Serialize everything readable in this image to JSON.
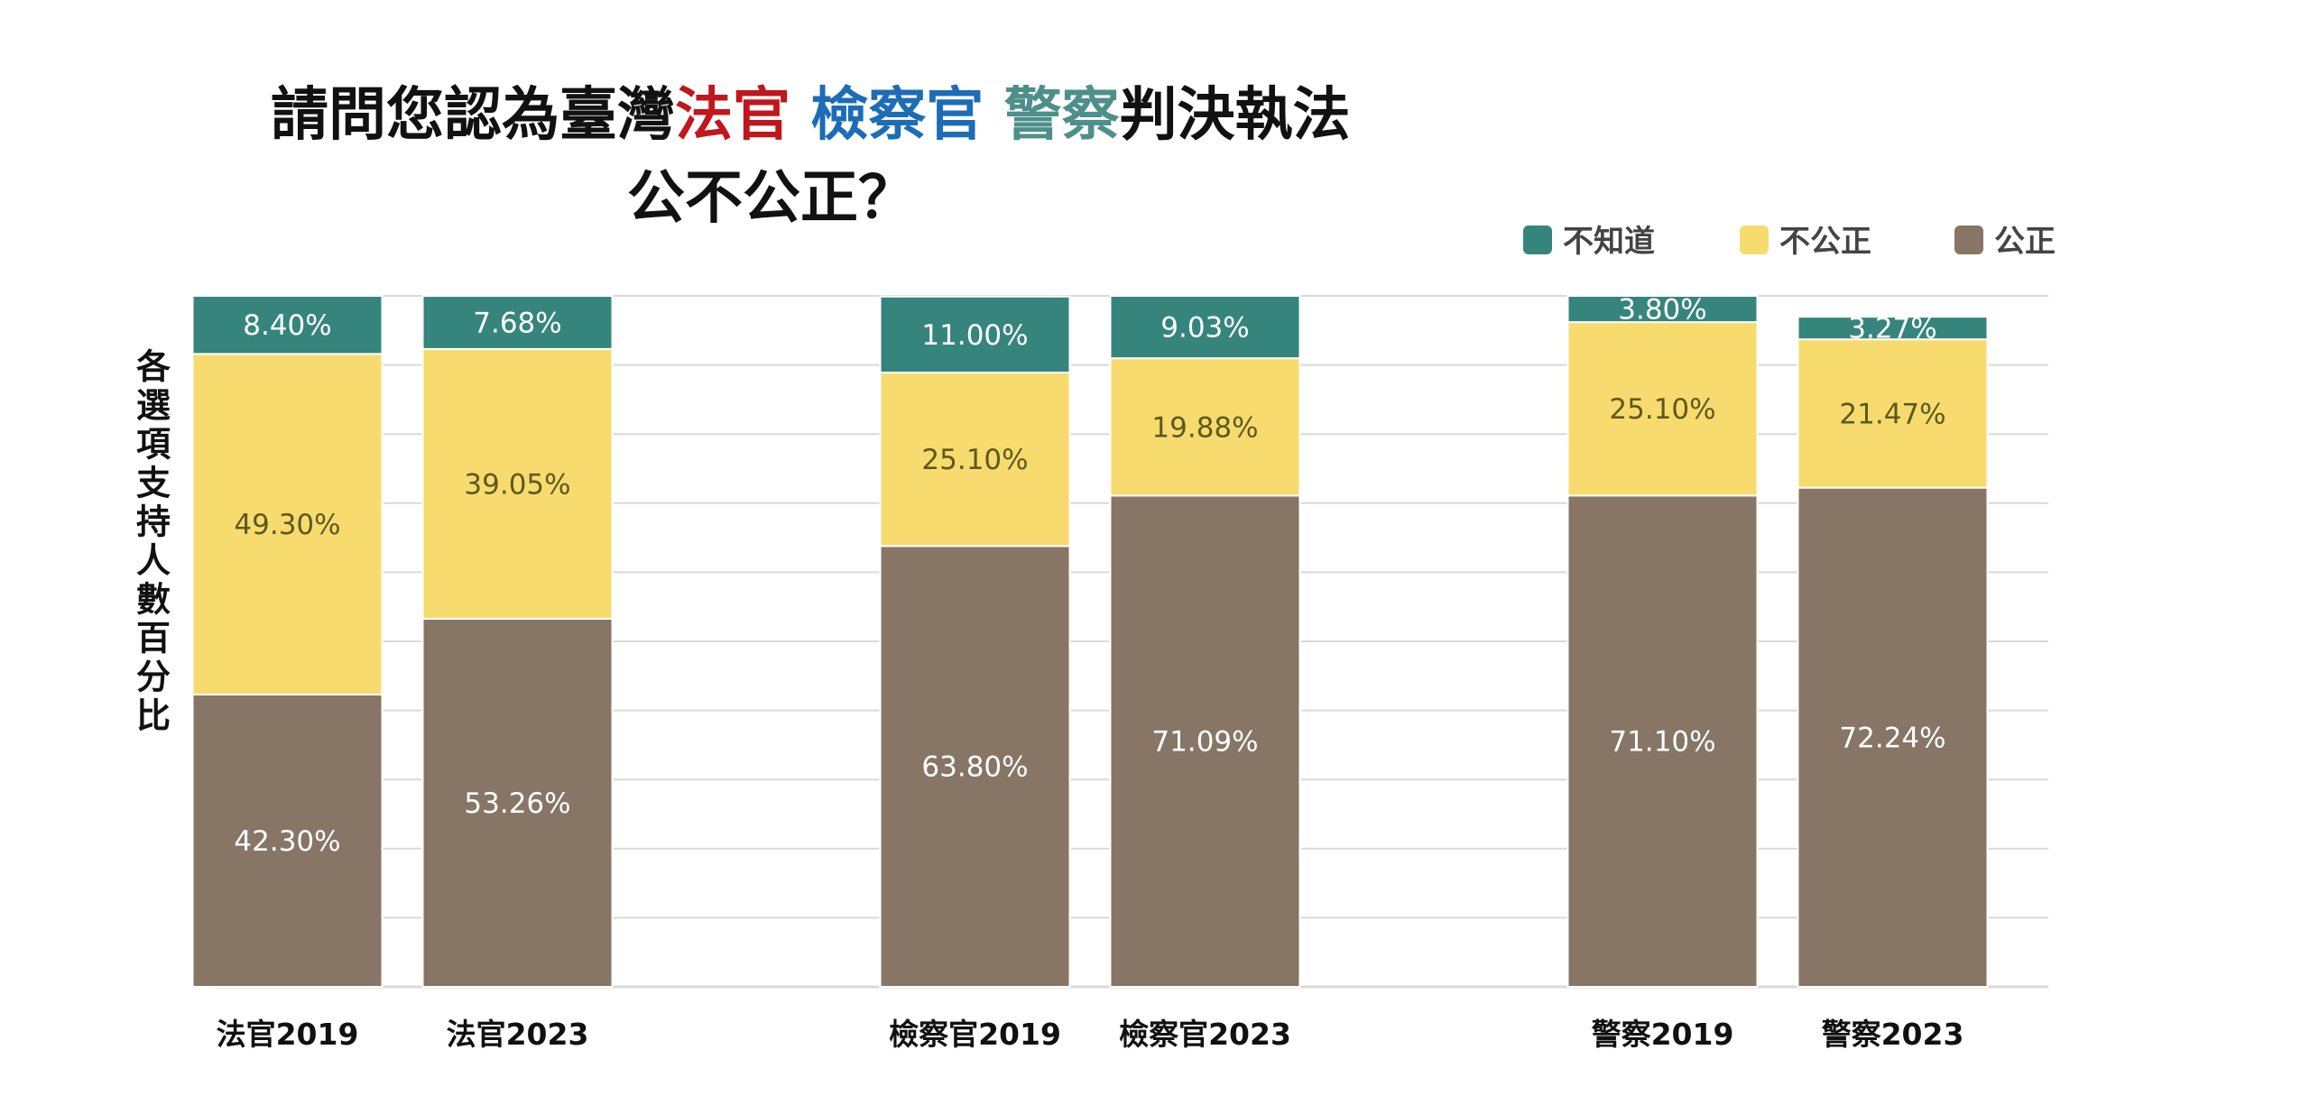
{
  "chart_data": {
    "type": "bar",
    "stacked": true,
    "title_parts": [
      {
        "text": "請問您認為臺灣",
        "color": "#111111"
      },
      {
        "text": "法官",
        "color": "#C0161C"
      },
      {
        "text": " ",
        "color": "#111111"
      },
      {
        "text": "檢察官",
        "color": "#1C6DB5"
      },
      {
        "text": " ",
        "color": "#111111"
      },
      {
        "text": "警察",
        "color": "#4E8F8B"
      },
      {
        "text": "判決執法",
        "color": "#111111"
      }
    ],
    "title_line2": "公不公正？",
    "ylabel": "各選項支持人數百分比",
    "categories": [
      "法官2019",
      "法官2023",
      "檢察官2019",
      "檢察官2023",
      "警察2019",
      "警察2023"
    ],
    "groups": [
      [
        0,
        1
      ],
      [
        2,
        3
      ],
      [
        4,
        5
      ]
    ],
    "series": [
      {
        "name": "公正",
        "color": "#877565",
        "label_color": "#FFFFFF",
        "values": [
          42.3,
          53.26,
          63.8,
          71.09,
          71.1,
          72.24
        ],
        "labels": [
          "42.30%",
          "53.26%",
          "63.80%",
          "71.09%",
          "71.10%",
          "72.24%"
        ]
      },
      {
        "name": "不公正",
        "color": "#F8DB6E",
        "label_color": "#5C5A1E",
        "values": [
          49.3,
          39.05,
          25.1,
          19.88,
          25.1,
          21.47
        ],
        "labels": [
          "49.30%",
          "39.05%",
          "25.10%",
          "19.88%",
          "25.10%",
          "21.47%"
        ]
      },
      {
        "name": "不知道",
        "color": "#36857D",
        "label_color": "#FFFFFF",
        "values": [
          8.4,
          7.68,
          11.0,
          9.03,
          3.8,
          3.27
        ],
        "labels": [
          "8.40%",
          "7.68%",
          "11.00%",
          "9.03%",
          "3.80%",
          "3.27%"
        ]
      }
    ],
    "legend_order": [
      "不知道",
      "不公正",
      "公正"
    ],
    "legend_position": "top-right",
    "ylim": [
      0,
      100
    ],
    "grid": true,
    "gridline_color": "#D9D9D9"
  }
}
